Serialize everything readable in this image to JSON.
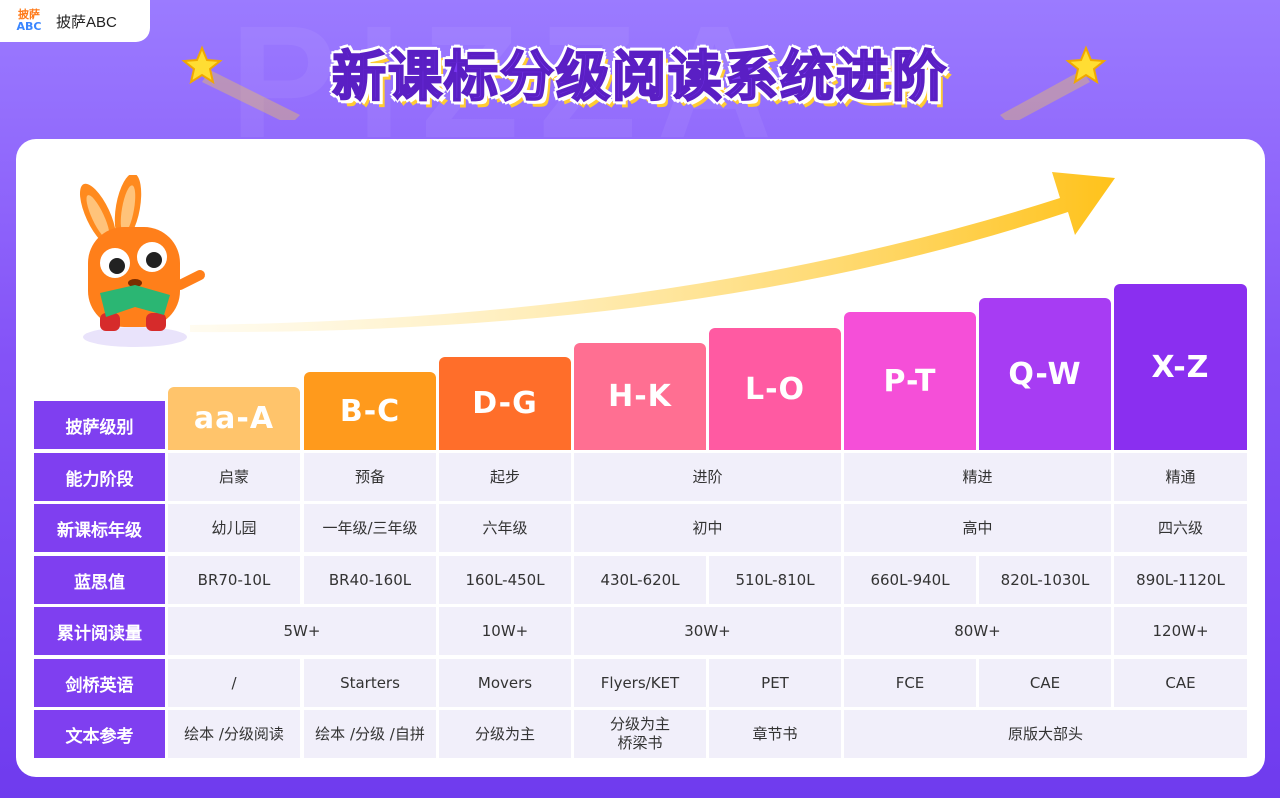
{
  "brand": {
    "logo_line1": "披萨",
    "logo_line2": "ABC",
    "name": "披萨ABC"
  },
  "title": "新课标分级阅读系统进阶",
  "colors": {
    "aa_A": "#ffc46b",
    "B_C": "#ff9a1c",
    "D_G": "#ff6e2a",
    "H_K": "#ff6f92",
    "L_O": "#ff5aa2",
    "P_T": "#f54fd8",
    "Q_W": "#a73cf3",
    "X_Z": "#8a2ff0",
    "header": "#7f3ff0",
    "cell_bg": "#f1effa"
  },
  "levels": [
    "aa-A",
    "B-C",
    "D-G",
    "H-K",
    "L-O",
    "P-T",
    "Q-W",
    "X-Z"
  ],
  "rows": {
    "level": {
      "label": "披萨级别"
    },
    "ability": {
      "label": "能力阶段",
      "cells": [
        "启蒙",
        "预备",
        "起步",
        "进阶",
        "精进",
        "精通"
      ]
    },
    "grade": {
      "label": "新课标年级",
      "cells": [
        "幼儿园",
        "一年级/三年级",
        "六年级",
        "初中",
        "高中",
        "四六级"
      ]
    },
    "lexile": {
      "label": "蓝思值",
      "cells": [
        "BR70-10L",
        "BR40-160L",
        "160L-450L",
        "430L-620L",
        "510L-810L",
        "660L-940L",
        "820L-1030L",
        "890L-1120L"
      ]
    },
    "volume": {
      "label": "累计阅读量",
      "cells": [
        "5W+",
        "10W+",
        "30W+",
        "80W+",
        "120W+"
      ]
    },
    "cambridge": {
      "label": "剑桥英语",
      "cells": [
        "/",
        "Starters",
        "Movers",
        "Flyers/KET",
        "PET",
        "FCE",
        "CAE",
        "CAE"
      ]
    },
    "text": {
      "label": "文本参考",
      "cells": [
        "绘本 /分级阅读",
        "绘本 /分级 /自拼",
        "分级为主",
        "分级为主",
        "桥梁书",
        "章节书",
        "原版大部头"
      ]
    }
  }
}
